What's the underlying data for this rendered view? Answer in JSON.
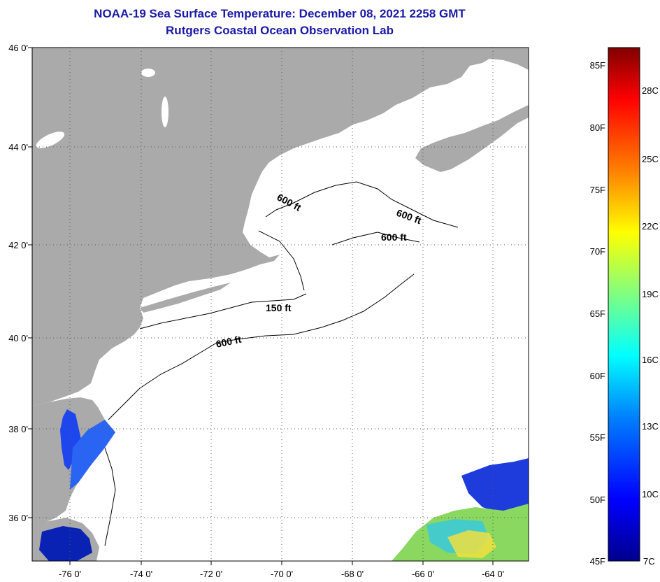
{
  "header": {
    "title": "NOAA-19 Sea Surface Temperature:  December 08, 2021 2258 GMT",
    "subtitle": "Rutgers Coastal Ocean Observation Lab"
  },
  "map": {
    "lat_labels": [
      "46 0'",
      "44 0'",
      "42 0'",
      "40 0'",
      "38 0'",
      "36 0'"
    ],
    "lon_labels": [
      "-76 0'",
      "-74 0'",
      "-72 0'",
      "-70 0'",
      "-68 0'",
      "-66 0'",
      "-64 0'"
    ],
    "contour_labels": [
      "600 ft",
      "600 ft",
      "600 ft",
      "150 ft",
      "600 ft"
    ],
    "colors": {
      "land": "#aaaaaa",
      "ocean_nodata": "#ffffff",
      "grid": "#555555"
    }
  },
  "colorbar": {
    "fahrenheit_labels": [
      "85F",
      "80F",
      "75F",
      "70F",
      "65F",
      "60F",
      "55F",
      "50F",
      "45F"
    ],
    "celsius_labels": [
      "28C",
      "25C",
      "22C",
      "19C",
      "16C",
      "13C",
      "10C",
      "7C"
    ],
    "colors": [
      "#00008c",
      "#0000ff",
      "#0080ff",
      "#00ffff",
      "#80ff80",
      "#ffff00",
      "#ff8000",
      "#ff0000",
      "#800000"
    ]
  }
}
